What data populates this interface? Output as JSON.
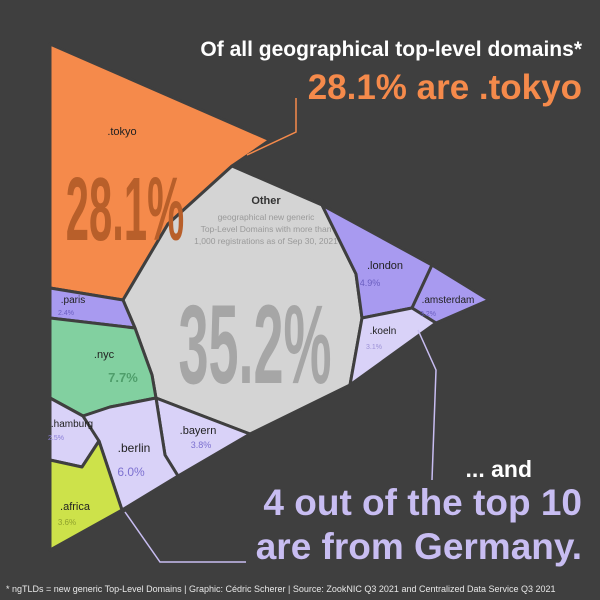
{
  "title_line1": "Of all geographical top-level domains*",
  "title_line2": "28.1% are .tokyo",
  "and_text": "... and",
  "germany_line1": "4 out of the top 10",
  "germany_line2": "are from Germany.",
  "footer": "* ngTLDs = new generic Top-Level Domains  | Graphic: Cédric Scherer  |  Source: ZookNIC Q3 2021 and Centralized Data Service Q3 2021",
  "colors": {
    "background": "#3f3f3f",
    "tokyo": "#f58a4b",
    "other": "#d4d4d4",
    "nyc": "#82d0a0",
    "purple": "#a89af0",
    "lavender": "#d9d2f8",
    "africa": "#cde24a"
  },
  "chart_data": {
    "type": "treemap-voronoi",
    "cells": [
      {
        "name": ".tokyo",
        "value": "28.1%"
      },
      {
        "name": "Other",
        "value": "35.2%",
        "note": "geographical new generic Top-Level Domains with more than 1,000 registrations as of Sep 30, 2021"
      },
      {
        "name": ".london",
        "value": "4.9%"
      },
      {
        "name": ".amsterdam",
        "value": "3.2%"
      },
      {
        "name": ".koeln",
        "value": "3.1%"
      },
      {
        "name": ".paris",
        "value": "2.4%"
      },
      {
        "name": ".nyc",
        "value": "7.7%"
      },
      {
        "name": ".hamburg",
        "value": "2.5%"
      },
      {
        "name": ".bayern",
        "value": "3.8%"
      },
      {
        "name": ".berlin",
        "value": "6.0%"
      },
      {
        "name": ".africa",
        "value": "3.6%"
      }
    ]
  }
}
